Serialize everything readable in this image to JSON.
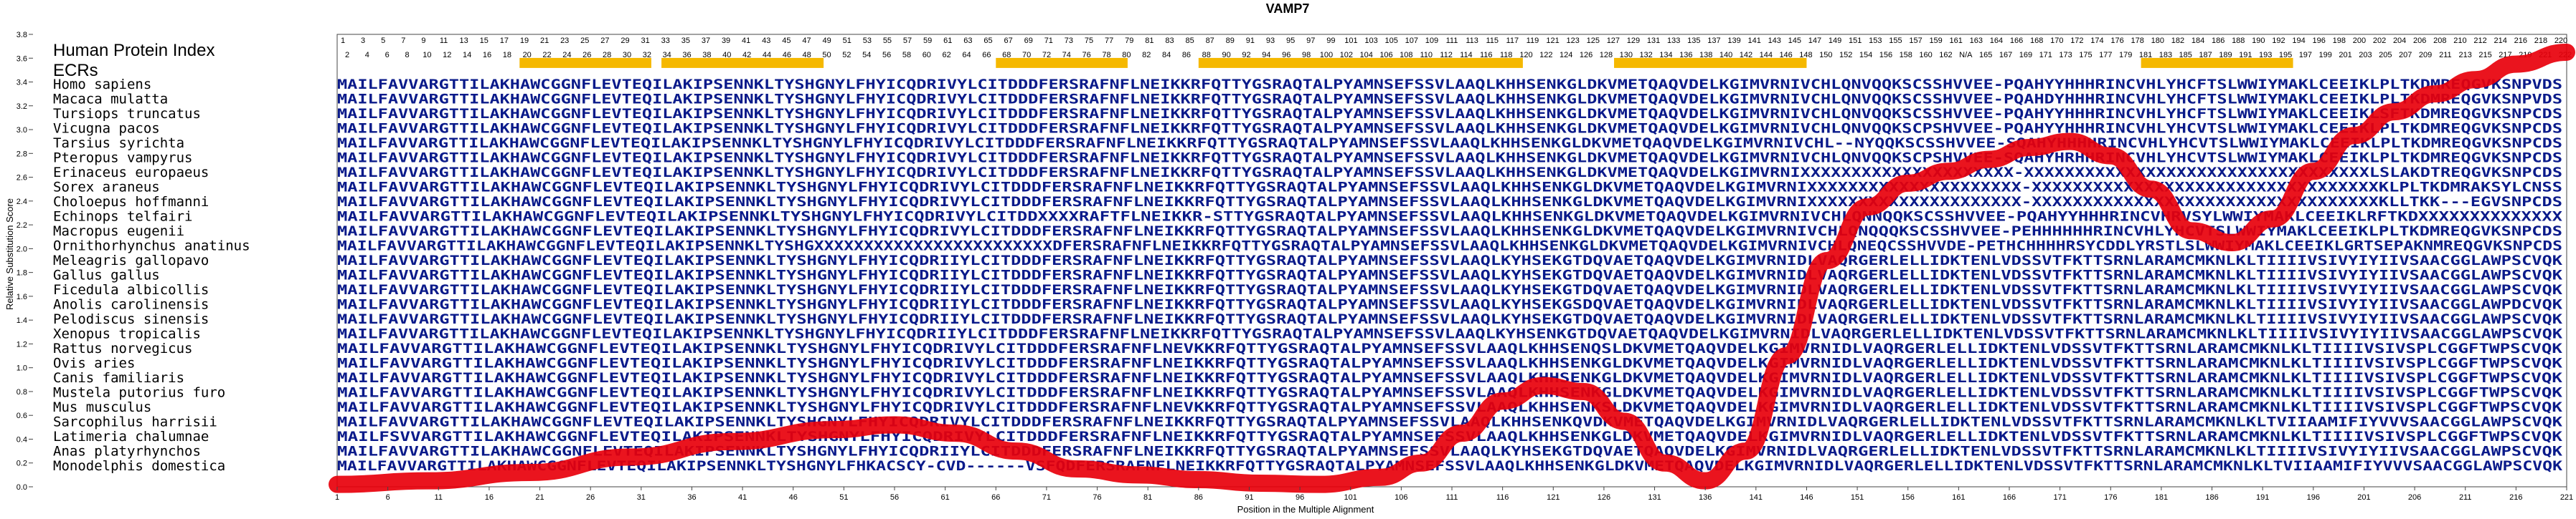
{
  "chart_data": {
    "type": "line",
    "title": "VAMP7",
    "xlabel": "Position in the Multiple Alignment",
    "ylabel": "Relative Substitution Score",
    "xlim": [
      1,
      221
    ],
    "ylim": [
      0.0,
      3.8
    ],
    "x_ticks": [
      1,
      6,
      11,
      16,
      21,
      26,
      31,
      36,
      41,
      46,
      51,
      56,
      61,
      66,
      71,
      76,
      81,
      86,
      91,
      96,
      101,
      106,
      111,
      116,
      121,
      126,
      131,
      136,
      141,
      146,
      151,
      156,
      161,
      166,
      171,
      176,
      181,
      186,
      191,
      196,
      201,
      206,
      211,
      216,
      221
    ],
    "y_ticks": [
      0.0,
      0.2,
      0.4,
      0.6,
      0.8,
      1.0,
      1.2,
      1.4,
      1.6,
      1.8,
      2.0,
      2.2,
      2.4,
      2.6,
      2.8,
      3.0,
      3.2,
      3.4,
      3.6,
      3.8
    ],
    "hpi_label": "Human Protein Index",
    "ecr_label": "ECRs",
    "hpi_top": [
      "1",
      "3",
      "5",
      "7",
      "9",
      "11",
      "13",
      "15",
      "17",
      "19",
      "21",
      "23",
      "25",
      "27",
      "29",
      "31",
      "33",
      "35",
      "37",
      "39",
      "41",
      "43",
      "45",
      "47",
      "49",
      "51",
      "53",
      "55",
      "57",
      "59",
      "61",
      "63",
      "65",
      "67",
      "69",
      "71",
      "73",
      "75",
      "77",
      "79",
      "81",
      "83",
      "85",
      "87",
      "89",
      "91",
      "93",
      "95",
      "97",
      "99",
      "101",
      "103",
      "105",
      "107",
      "109",
      "111",
      "113",
      "115",
      "117",
      "119",
      "121",
      "123",
      "125",
      "127",
      "129",
      "131",
      "133",
      "135",
      "137",
      "139",
      "141",
      "143",
      "145",
      "147",
      "149",
      "151",
      "153",
      "155",
      "157",
      "159",
      "161",
      "163",
      "164",
      "166",
      "168",
      "170",
      "172",
      "174",
      "176",
      "178",
      "180",
      "182",
      "184",
      "186",
      "188",
      "190",
      "192",
      "194",
      "196",
      "198",
      "200",
      "202",
      "204",
      "206",
      "208",
      "210",
      "212",
      "214",
      "216",
      "218",
      "220"
    ],
    "hpi_bottom": [
      "2",
      "4",
      "6",
      "8",
      "10",
      "12",
      "14",
      "16",
      "18",
      "20",
      "22",
      "24",
      "26",
      "28",
      "30",
      "32",
      "34",
      "36",
      "38",
      "40",
      "42",
      "44",
      "46",
      "48",
      "50",
      "52",
      "54",
      "56",
      "58",
      "60",
      "62",
      "64",
      "66",
      "68",
      "70",
      "72",
      "74",
      "76",
      "78",
      "80",
      "82",
      "84",
      "86",
      "88",
      "90",
      "92",
      "94",
      "96",
      "98",
      "100",
      "102",
      "104",
      "106",
      "108",
      "110",
      "112",
      "114",
      "116",
      "118",
      "120",
      "122",
      "124",
      "126",
      "128",
      "130",
      "132",
      "134",
      "136",
      "138",
      "140",
      "142",
      "144",
      "146",
      "148",
      "150",
      "152",
      "154",
      "156",
      "158",
      "160",
      "162",
      "N/A",
      "165",
      "167",
      "169",
      "171",
      "173",
      "175",
      "177",
      "179",
      "181",
      "183",
      "185",
      "187",
      "189",
      "191",
      "193",
      "195",
      "197",
      "199",
      "201",
      "203",
      "205",
      "207",
      "209",
      "211",
      "213",
      "215",
      "217",
      "219",
      "221",
      "222"
    ],
    "ecrs": [
      [
        19,
        32
      ],
      [
        33,
        49
      ],
      [
        66,
        79
      ],
      [
        86,
        118
      ],
      [
        127,
        146
      ],
      [
        179,
        194
      ]
    ],
    "series": [
      {
        "x": [
          1,
          10,
          20,
          30,
          40,
          50,
          56,
          62,
          68,
          74,
          80,
          86,
          92,
          98,
          104,
          108,
          112,
          116,
          120,
          124,
          128,
          132,
          136,
          140,
          144,
          148,
          152,
          156,
          160,
          164,
          168,
          172,
          176,
          180,
          184,
          188,
          192,
          196,
          200,
          204,
          208,
          212,
          216,
          221
        ],
        "y": [
          0.02,
          0.05,
          0.12,
          0.25,
          0.38,
          0.48,
          0.52,
          0.45,
          0.3,
          0.15,
          0.1,
          0.06,
          0.03,
          0.02,
          0.08,
          0.2,
          0.45,
          0.72,
          0.85,
          0.8,
          0.55,
          0.2,
          0.05,
          0.3,
          1.1,
          1.9,
          2.35,
          2.55,
          2.65,
          2.75,
          2.85,
          2.9,
          2.78,
          2.5,
          2.15,
          2.05,
          2.25,
          2.65,
          2.95,
          3.15,
          3.3,
          3.42,
          3.55,
          3.65
        ]
      }
    ],
    "line_color": "#e8000b",
    "ecr_color": "#f5b800",
    "species": [
      "Homo sapiens",
      "Macaca mulatta",
      "Tursiops truncatus",
      "Vicugna pacos",
      "Tarsius syrichta",
      "Pteropus vampyrus",
      "Erinaceus europaeus",
      "Sorex araneus",
      "Choloepus hoffmanni",
      "Echinops telfairi",
      "Macropus eugenii",
      "Ornithorhynchus anatinus",
      "Meleagris gallopavo",
      "Gallus gallus",
      "Ficedula albicollis",
      "Anolis carolinensis",
      "Pelodiscus sinensis",
      "Xenopus tropicalis",
      "Rattus norvegicus",
      "Ovis aries",
      "Canis familiaris",
      "Mustela putorius furo",
      "Mus musculus",
      "Sarcophilus harrisii",
      "Latimeria chalumnae",
      "Anas platyrhynchos",
      "Monodelphis domestica"
    ],
    "sequences": [
      "MAILFAVVARGTTILAKHAWCGGNFLEVTEQILAKIPSENNKLTYSHGNYLFHYICQDRIVYLCITDDDFERSRAFNFLNEIKKRFQTTYGSRAQTALPYAMNSEFSSVLAAQLKHHSENKGLDKVMETQAQVDELKGIMVRNIVCHLQNVQQKSCSSHVVEE-PQAHYYHHHRINCVHLYHCFTSLWWIYMAKLCEEIKLPLTKDMREQGVKSNPVDS",
      "MAILFAVVARGTTILAKHAWCGGNFLEVTEQILAKIPSENNKLTYSHGNYLFHYICQDRIVYLCITDDDFERSRAFNFLNEIKKRFQTTYGSRAQTALPYAMNSEFSSVLAAQLKHHSENKGLDKVMETQAQVDELKGIMVRNIVCHLQNVQQKSCSSHVVEE-PQAHDYHHHRINCVHLYHCFTSLWWIYMAKLCEEIKLPLTKDMREQGVKSNPVDS",
      "MAILFAVVARGTTILAKHAWCGGNFLEVTEQILAKIPSENNKLTYSHGNYLFHYICQDRIVYLCITDDDFERSRAFNFLNEIKKRFQTTYGSRAQTALPYAMNSEFSSVLAAQLKHHSENKGLDKVMETQAQVDELKGIMVRNIVCHLQNVQQKSCSSHVVEE-PQAHYYHHHRINCVHLYHCFTSLWWIYMAKLCEEIKLSFTKDMREQGVKSNPCDS",
      "MAILFAVVARGTTILAKHAWCGGNFLEVTEQILAKIPSENNKLTYSHGNYLFHYICQDRIVYLCITDDDFERSRAFNFLNEIKKRFQTTYGSRAQTALPYAMNSEFSSVLAAQLKHHSENKGLDKVMETQAQVDELKGIMVRNIVCHLQNVQQKSCPSHVVEE-PQAHYYHHHRINCVHLYHCVTSLWWIYMAKLCEEIKLPLTKDMREQGVKSNPCDS",
      "MAILFAVVARGTTILAKHAWCGGNFLEVTEQILAKIPSENNKLTYSHGNYLFHYICQDRIVYLCITDDDFERSRAFNFLNEIKKRFQTTYGSRAQTALPYAMNSEFSSVLAAQLKHHSENKGLDKVMETQAQVDELKGIMVRNIVCHL--NYQQKSCSSHVVEE-SQAHYHHHHRINCVHLYHCVTSLWWIYMAKLCEEIKLPLTKDMREQGVKSNPCDS",
      "MAILFAVVARGTTILAKHAWCGGNFLEVTEQILAKIPSENNKLTYSHGNYLFHYICQDRIVYLCITDDDFERSRAFNFLNEIKKRFQTTYGSRAQTALPYAMNSEFSSVLAAQLKHHSENKGLDKVMETQAQVDELKGIMVRNIVCHLQNVQQKSCPSHVVEE-SQAHYHRHHRINCVHLYHCVTSLWWIYMAKLCEEIKLPLTKDMREQGVKSNPCDS",
      "MAILFAVVARGTTILAKHAWCGGNFLEVTEQILAKIPSENNKLTYSHGNYLFHYICQDRIVYLCITDDDFERSRAFNFLNEIKKRFQTTYGSRAQTALPYAMNSEFSSVLAAQLKHHSENKGLDKVMETQAQVDELKGIMVRNIXXXXXXXXXXXXXXXXXXXXX-XXXXXXXXXXXXXXXXXXXXXXXXXXXXXXXXXXLSLAKDTREQGVKSNPCDS",
      "MAILFAVVARGTTILAKHAWCGGNFLEVTEQILAKIPSENNKLTYSHGNYLFHYICQDRIVYLCITDDDFERSRAFNFLNEIKKRFQTTYGSRAQTALPYAMNSEFSSVLAAQLKHHSENKGLDKVMETQAQVDELKGIMVRNIXXXXXXXXXXXXXXXXXXXXX-XXXXXXXXXXXXXXXXXXXXXXXXXXXXXXXXXXKLPLTKDMRAKSYLCNSS",
      "MAILFAVVARGTTILAKHAWCGGNFLEVTEQILAKIPSENNKLTYSHGNYLFHYICQDRIVYLCITDDDFERSRAFNFLNEIKKRFQTTYGSRAQTALPYAMNSEFSSVLAAQLKHHSENKGLDKVMETQAQVDELKGIMVRNIXXXXXXXXXXXXXXXXXXXXX-XXXXXXXXXXXXXXXXXXXXXXXXXXXXXXXXXXKLLTKK---EGVSNPCDS",
      "MAILFAVVARGTTILAKHAWCGGNFLEVTEQILAKIPSENNKLTYSHGNYLFHYICQDRIVYLCITDDXXXXRAFTFLNEIKKR-STTYGSRAQTALPYAMNSEFSSVLAAQLKHHSENKGLDKVMETQAQVDELKGIMVRNIVCHLQNNQQKSCSSHVVEE-PQAHYYHHHRINCVHRVSYLWWIYMAKLCEEIKLRFTKDXXXXXXXXXXXXXX",
      "MAILFAVVARGTTILAKHAWCGGNFLEVTEQILAKIPSENNKLTYSHGNYLFHYICQDRIVYLCITDDDFERSRAFNFLNEIKKRFQTTYGSRAQTALPYAMNSEFSSVLAAQLKHHSENKGLDKVMETQAQVDELKGIMVRNIVCHLQNQQQKSCSSHVVEE-PEHHHHHHRINCVHLYHCVTSLWWIYMAKLCEEIKLPLTKDMREQGVKSNPCDS",
      "MAILFAVVARGTTILAKHAWCGGNFLEVTEQILAKIPSENNKLTYSHGXXXXXXXXXXXXXXXXXXXXXXXXDFERSRAFNFLNEIKKRFQTTYGSRAQTALPYAMNSEFSSVLAAQLKHHSENKGLDKVMETQAQVDELKGIMVRNIVCHLQNEQCSSHVVDE-PETHCHHHHRSYCDDLYRSTLSLWWIYMAKLCEEIKLGRTSEPAKNMREQGVKSNPCDS",
      "MAILFAVVARGTTILAKHAWCGGNFLEVTEQILAKIPSENNKLTYSHGNYLFHYICQDRIIYLCITDDDFERSRAFNFLNEIKKRFQTTYGSRAQTALPYAMNSEFSSVLAAQLKYHSEKGTDQVAETQAQVDELKGIMVRNIDLVAQRGERLELLIDKTENLVDSSVTFKTTSRNLARAMCMKNLKLTIIIIVSIVYIYIIVSAACGGLAWPSCVQK",
      "MAILFAVVARGTTILAKHAWCGGNFLEVTEQILAKIPSENNKLTYSHGNYLFHYICQDRIIYLCITDDDFERSRAFNFLNEIKKRFQTTYGSRAQTALPYAMNSEFSSVLAAQLKYHSEKGTDQVAETQAQVDELKGIMVRNIDLVAQRGERLELLIDKTENLVDSSVTFKTTSRNLARAMCMKNLKLTIIIIVSIVYIYIIVSAACGGLAWPSCVQK",
      "MAILFAVVARGTTILAKHAWCGGNFLEVTEQILAKIPSENNKLTYSHGNYLFHYICQDRIIYLCITDDDFERSRAFNFLNEIKKRFQTTYGSRAQTALPYAMNSEFSSVLAAQLKYHSEKGTDQVAETQAQVDELKGIMVRNIDLVAQRGERLELLIDKTENLVDSSVTFKTTSRNLARAMCMKNLKLTIIIIVSIVYIYIIVSAACGGLAWPSCVQK",
      "MAILFAVVARGTTILAKHAWCGGNFLEVTEQILAKIPSENNKLTYSHGNYLFHYICQDRIIYLCITDDDFERSRAFNFLNEIKKRFQTTYGSRAQTALPYAMNSEFSSVLAAQLKYHSEKGSDQVAETQAQVDELKGIMVRNIDLVAQRGERLELLIDKTENLVDSSVTFKTTSRNLARAMCMKNLKLTIIIIVSIVYIYIIVSAACGGLAWPDCVQK",
      "MAILFAVVARGTTILAKHAWCGGNFLEVTEQILAKIPSENNKLTYSHGNYLFHYICQDRIIYLCITDDDFERSRAFNFLNEIKKRFQTTYGSRAQTALPYAMNSEFSSVLAAQLKYHSEKGTDQVAETQAQVDELKGIMVRNIDLVAQRGERLELLIDKTENLVDSSVTFKTTSRNLARAMCMKNLKLTIIIIVSIVYIYIIVSAACGGLAWPSCVQK",
      "MAILFAVVARGTTILAKHAWCGGNFLEVTEQILAKIPSENNKLTYSHGNYLFHYICQDRIIYLCITDDDFERSRAFNFLNEIKKRFQTTYGSRAQTALPYAMNSEFSSVLAAQLKYHSENKGTDQVAETQAQVDELKGIMVRNIDLVAQRGERLELLIDKTENLVDSSVTFKTTSRNLARAMCMKNLKLTIIIIVSIVYIYIIVSAACGGLAWPSCVQK",
      "MAILFAVVARGTTILAKHAWCGGNFLEVTEQILAKIPSENNKLTYSHGNYLFHYICQDRIVYLCITDDDFERSRAFNFLNEVKKRFQTTYGSRAQTALPYAMNSEFSSVLAAQLKHHSENQSLDKVMETQAQVDELKGIMVRNIDLVAQRGERLELLIDKTENLVDSSVTFKTTSRNLARAMCMKNLKLTIIIIVSIVSPLCGGFTWPSCVQK",
      "MAILFAVVARGTTILAKHAWCGGNFLEVTEQILAKIPSENNKLTYSHGNYLFHYICQDRIVYLCITDDDFERSRAFNFLNEIKKRFQTTYGSRAQTALPYAMNSEFSSVLAAQLKHHSENKGLDKVMETQAQVDELKGIMVRNIDLVAQRGERLELLIDKTENLVDSSVTFKTTSRNLARAMCMKNLKLTIIIIVSIVSPLCGGFTWPSCVQK",
      "MAILFAVVARGTTILAKHAWCGGNFLEVTEQILAKIPSENNKLTYSHGNYLFHYICQDRIVYLCITDDDFERSRAFNFLNEIKKRFQTTYGSRAQTALPYAMNSEFSSVLAAQLKHHSENKGLDKVMETQAQVDELKGIMVRNIDLVAQRGERLELLIDKTENLVDSSVTFKTTSRNLARAMCMKNLKLTIIIIVSIVSPLCGGFTWPSCVQK",
      "MAILFAVVARGTTILAKHAWCGGNFLEVTEQILAKIPSENNKLTYSHGNYLFHYICQDRIVYLCITDDDFERSRAFNFLNEIKKRFQTTYGSRAQTALPYAMNSEFSSVLAAQLKHHSENKGLDKVMETQAQVDELKGIMVRNIDLVAQRGERLELLIDKTENLVDSSVTFKTTSRNLARAMCMKNLKLTIIIIVSIVSPLCGGFTWPSCVQK",
      "MAILFAVVARGTTILAKHAWCGGNFLEVTEQILAKIPSENNKLTYSHGNYLFHYICQDRIVYLCITDDDFERSRAFNFLNEVKKRFQTTYGSRAQTALPYAMNSEFSSVLAAQLKHHSENKSLDKVMETQAQVDELKGIMVRNIDLVAQRGERLELLIDKTENLVDSSVTFKTTSRNLARAMCMKNLKLTIIIIVSIVSPLCGGFTWPSCVQK",
      "MAILFAVVARGTTILAKHAWCGGNFLEVTEQILAKIPSENNKLTYSHGNYLFHYICQDRIVYLCITDDDFERSRAFNFLNEIKKRFQTTYGSRAQTALPYAMNSEFSSVLAAQLKHHSENKQVDKVMETQAQVDELKGIMVRNIDLVAQRGERLELLIDKTENLVDSSVTFKTTSRNLARAMCMKNLKLTVIIAAMIFIYVVVSAACGGLAWPSCVQK",
      "MAILFSVVARGTTILAKHAWCGGNFLEVTEQILAKIPSENNKLTYSHGNYLFHYICQDRIVYLCITDDDFERSRAFNFLNEIKKRFQTTYGSRAQTALPYAMNSEFSSVLAAQLKHHSENKGLDKVMETQAQVDELKGIMVRNIDLVAQRGERLELLIDKTENLVDSSVTFKTTSRNLARAMCMKNLKLTIIIIVSIVSPLCGGFTWPSCVQK",
      "MAILFAVVARGTTILAKHAWCGGNFLEVTEQILAKIPSENNKLTYSHGNYLFHYICQDRIIYLCITDDDFERSRAFNFLNEIKKRFQTTYGSRAQTALPYAMNSEFSSVLAAQLKYHSEKGTDQVAETQAQVDELKGIMVRNIDLVAQRGERLELLIDKTENLVDSSVTFKTTSRNLARAMCMKNLKLTIIIIVSIVYIYIIVSAACGGLAWPSCVQK",
      "MAILFAVVARGTTILAKHAWCGGNFLEVTEQILAKIPSENNKLTYSHGNYLFHKACSCY-CVD------VSFQDFERSRAFNFLNEIKKRFQTTYGSRAQTALPYAMNSEFSSVLAAQLKHHSENKGLDKVMETQAQVDELKGIMVRNIDLVAQRGERLELLIDKTENLVDSSVTFKTTSRNLARAMCMKNLKLTVIIAAMIFIYVVVSAACGGLAWPSCVQK"
    ]
  }
}
